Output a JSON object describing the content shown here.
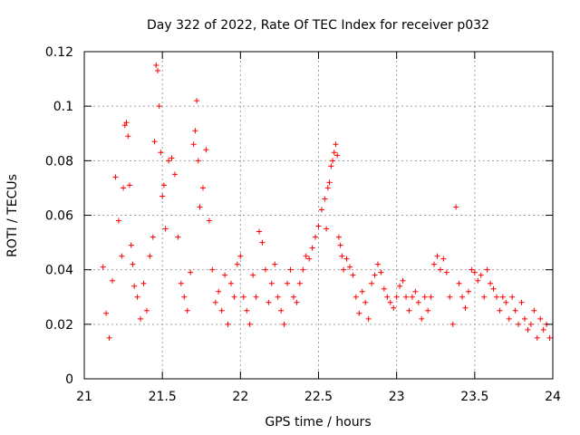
{
  "chart_data": {
    "type": "scatter",
    "title": "Day 322 of 2022, Rate Of TEC Index for receiver p032",
    "xlabel": "GPS time / hours",
    "ylabel": "ROTI / TECUs",
    "xlim": [
      21,
      24
    ],
    "ylim": [
      0,
      0.12
    ],
    "xticks": [
      21,
      21.5,
      22,
      22.5,
      23,
      23.5,
      24
    ],
    "xtick_labels": [
      "21",
      "21.5",
      "22",
      "22.5",
      "23",
      "23.5",
      "24"
    ],
    "yticks": [
      0,
      0.02,
      0.04,
      0.06,
      0.08,
      0.1,
      0.12
    ],
    "ytick_labels": [
      "0",
      "0.02",
      "0.04",
      "0.06",
      "0.08",
      "0.1",
      "0.12"
    ],
    "grid": true,
    "marker": "plus",
    "series_color": "#ff0000",
    "series": [
      {
        "name": "p032",
        "x": [
          21.12,
          21.14,
          21.16,
          21.18,
          21.2,
          21.22,
          21.24,
          21.25,
          21.26,
          21.27,
          21.28,
          21.29,
          21.3,
          21.31,
          21.32,
          21.34,
          21.36,
          21.38,
          21.4,
          21.42,
          21.44,
          21.45,
          21.46,
          21.47,
          21.48,
          21.49,
          21.5,
          21.51,
          21.52,
          21.54,
          21.56,
          21.58,
          21.6,
          21.62,
          21.64,
          21.66,
          21.68,
          21.7,
          21.71,
          21.72,
          21.73,
          21.74,
          21.76,
          21.78,
          21.8,
          21.82,
          21.84,
          21.86,
          21.88,
          21.9,
          21.92,
          21.94,
          21.96,
          21.98,
          22.0,
          22.02,
          22.04,
          22.06,
          22.08,
          22.1,
          22.12,
          22.14,
          22.16,
          22.18,
          22.2,
          22.22,
          22.24,
          22.26,
          22.28,
          22.3,
          22.32,
          22.34,
          22.36,
          22.38,
          22.4,
          22.42,
          22.44,
          22.46,
          22.48,
          22.5,
          22.52,
          22.54,
          22.55,
          22.56,
          22.57,
          22.58,
          22.59,
          22.6,
          22.61,
          22.62,
          22.63,
          22.64,
          22.65,
          22.66,
          22.68,
          22.7,
          22.72,
          22.74,
          22.76,
          22.78,
          22.8,
          22.82,
          22.84,
          22.86,
          22.88,
          22.9,
          22.92,
          22.94,
          22.96,
          22.98,
          23.0,
          23.02,
          23.04,
          23.06,
          23.08,
          23.1,
          23.12,
          23.14,
          23.16,
          23.18,
          23.2,
          23.22,
          23.24,
          23.26,
          23.28,
          23.3,
          23.32,
          23.34,
          23.36,
          23.38,
          23.4,
          23.42,
          23.44,
          23.46,
          23.48,
          23.5,
          23.52,
          23.54,
          23.56,
          23.58,
          23.6,
          23.62,
          23.64,
          23.66,
          23.68,
          23.7,
          23.72,
          23.74,
          23.76,
          23.78,
          23.8,
          23.82,
          23.84,
          23.86,
          23.88,
          23.9,
          23.92,
          23.94,
          23.96,
          23.98
        ],
        "y": [
          0.041,
          0.024,
          0.015,
          0.036,
          0.074,
          0.058,
          0.045,
          0.07,
          0.093,
          0.094,
          0.089,
          0.071,
          0.049,
          0.042,
          0.034,
          0.03,
          0.022,
          0.035,
          0.025,
          0.045,
          0.052,
          0.087,
          0.115,
          0.113,
          0.1,
          0.083,
          0.067,
          0.071,
          0.055,
          0.08,
          0.081,
          0.075,
          0.052,
          0.035,
          0.03,
          0.025,
          0.039,
          0.086,
          0.091,
          0.102,
          0.08,
          0.063,
          0.07,
          0.084,
          0.058,
          0.04,
          0.028,
          0.032,
          0.025,
          0.038,
          0.02,
          0.035,
          0.03,
          0.042,
          0.045,
          0.03,
          0.025,
          0.02,
          0.038,
          0.03,
          0.054,
          0.05,
          0.04,
          0.028,
          0.035,
          0.042,
          0.03,
          0.025,
          0.02,
          0.035,
          0.04,
          0.03,
          0.028,
          0.035,
          0.04,
          0.045,
          0.044,
          0.048,
          0.052,
          0.056,
          0.062,
          0.066,
          0.055,
          0.07,
          0.072,
          0.078,
          0.08,
          0.083,
          0.086,
          0.082,
          0.052,
          0.049,
          0.045,
          0.04,
          0.044,
          0.041,
          0.038,
          0.03,
          0.024,
          0.032,
          0.028,
          0.022,
          0.035,
          0.038,
          0.042,
          0.039,
          0.033,
          0.03,
          0.028,
          0.026,
          0.03,
          0.034,
          0.036,
          0.03,
          0.025,
          0.03,
          0.032,
          0.028,
          0.022,
          0.03,
          0.025,
          0.03,
          0.042,
          0.045,
          0.04,
          0.044,
          0.039,
          0.03,
          0.02,
          0.063,
          0.035,
          0.03,
          0.026,
          0.032,
          0.04,
          0.039,
          0.036,
          0.038,
          0.03,
          0.04,
          0.035,
          0.033,
          0.03,
          0.025,
          0.03,
          0.028,
          0.022,
          0.03,
          0.025,
          0.02,
          0.028,
          0.022,
          0.018,
          0.02,
          0.025,
          0.015,
          0.022,
          0.018,
          0.02,
          0.015
        ]
      }
    ]
  }
}
